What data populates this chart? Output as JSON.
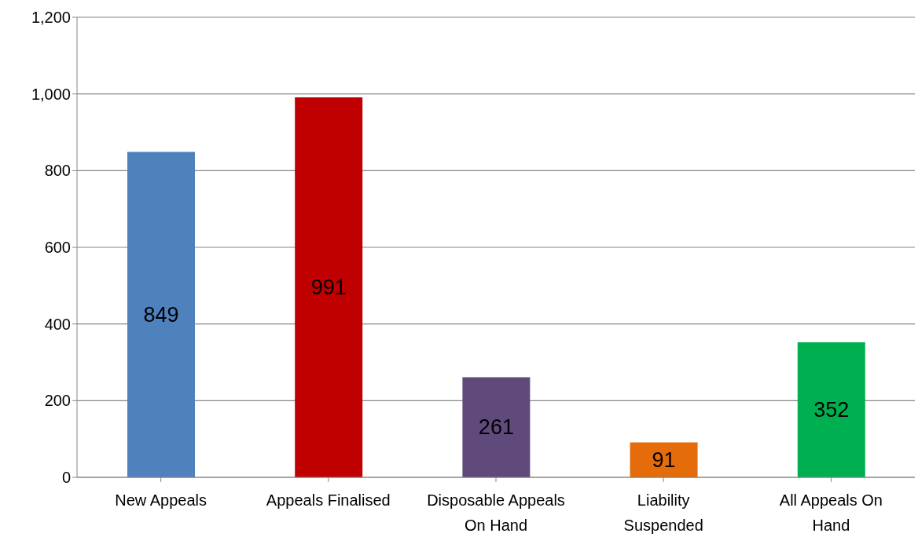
{
  "chart_data": {
    "type": "bar",
    "categories": [
      "New Appeals",
      "Appeals Finalised",
      "Disposable Appeals On Hand",
      "Liability Suspended",
      "All Appeals On Hand"
    ],
    "values": [
      849,
      991,
      261,
      91,
      352
    ],
    "colors": [
      "#4f81bd",
      "#c00000",
      "#604a7b",
      "#e46c0a",
      "#00b050"
    ],
    "ylim": [
      0,
      1200
    ],
    "yticks": [
      {
        "value": 0,
        "label": "0"
      },
      {
        "value": 200,
        "label": "200"
      },
      {
        "value": 400,
        "label": "400"
      },
      {
        "value": 600,
        "label": "600"
      },
      {
        "value": 800,
        "label": "800"
      },
      {
        "value": 1000,
        "label": "1,000"
      },
      {
        "value": 1200,
        "label": "1,200"
      }
    ],
    "grid": "y",
    "data_labels": true,
    "legend": false
  }
}
